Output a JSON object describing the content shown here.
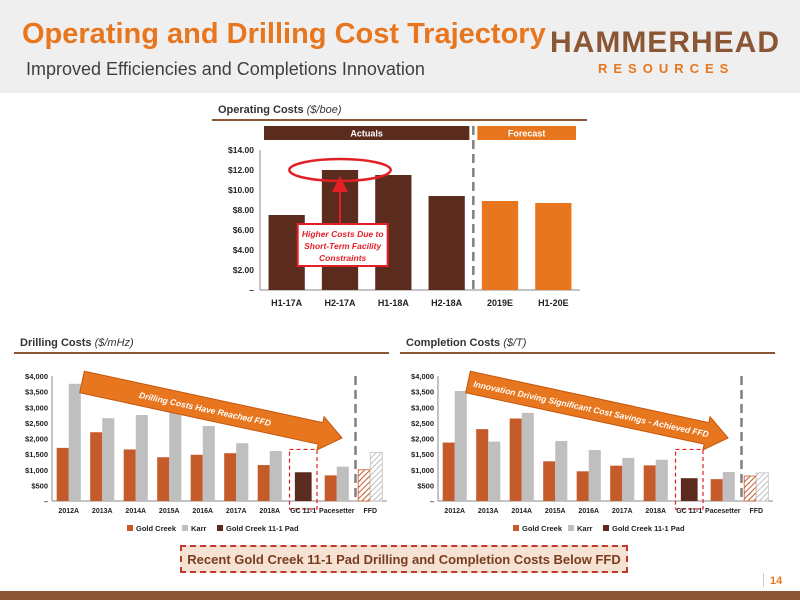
{
  "header": {
    "title": "Operating and Drilling Cost Trajectory",
    "subtitle": "Improved Efficiencies and Completions Innovation",
    "logo_main": "HAMMERHEAD",
    "logo_sub": "RESOURCES"
  },
  "opcost_section": {
    "label": "Operating Costs",
    "unit": "($/boe)"
  },
  "drill_section": {
    "label": "Drilling Costs",
    "unit": "($/mHz)"
  },
  "comp_section": {
    "label": "Completion Costs",
    "unit": "($/T)"
  },
  "callout": "Recent Gold Creek 11-1 Pad Drilling and Completion Costs Below FFD",
  "page_number": "14",
  "colors": {
    "orange": "#e8761e",
    "brown": "#5b2c1e",
    "gold_creek": "#c55a2b",
    "karr": "#bfbfbf",
    "pad": "#5b2c1e",
    "red": "#e31f26"
  },
  "chart_data": [
    {
      "type": "bar",
      "title": "Operating Costs ($/boe)",
      "categories": [
        "H1-17A",
        "H2-17A",
        "H1-18A",
        "H2-18A",
        "2019E",
        "H1-20E"
      ],
      "values": [
        7.5,
        12.0,
        11.5,
        9.4,
        8.9,
        8.7
      ],
      "period": [
        "Actuals",
        "Actuals",
        "Actuals",
        "Actuals",
        "Forecast",
        "Forecast"
      ],
      "period_labels": {
        "actuals": "Actuals",
        "forecast": "Forecast"
      },
      "ylim": [
        0,
        14
      ],
      "yticks": [
        0,
        2,
        4,
        6,
        8,
        10,
        12,
        14
      ],
      "ytick_labels": [
        "–",
        "$2.00",
        "$4.00",
        "$6.00",
        "$8.00",
        "$10.00",
        "$12.00",
        "$14.00"
      ],
      "annotation": [
        "Higher Costs Due to",
        "Short-Term Facility",
        "Constraints"
      ]
    },
    {
      "type": "bar",
      "title": "Drilling Costs ($/mHz)",
      "categories": [
        "2012A",
        "2013A",
        "2014A",
        "2015A",
        "2016A",
        "2017A",
        "2018A",
        "GC 11-1",
        "Pacesetter",
        "FFD"
      ],
      "series": [
        {
          "name": "Gold Creek",
          "values": [
            1700,
            2200,
            1650,
            1400,
            1480,
            1530,
            1150,
            null,
            820,
            1000
          ]
        },
        {
          "name": "Karr",
          "values": [
            3750,
            2650,
            2750,
            2850,
            2400,
            1850,
            1600,
            null,
            1100,
            1550
          ]
        },
        {
          "name": "Gold Creek  11-1 Pad",
          "values": [
            null,
            null,
            null,
            null,
            null,
            null,
            null,
            920,
            null,
            null
          ]
        }
      ],
      "ylim": [
        0,
        4000
      ],
      "yticks": [
        0,
        500,
        1000,
        1500,
        2000,
        2500,
        3000,
        3500,
        4000
      ],
      "ytick_labels": [
        "–",
        "$500",
        "$1,000",
        "$1,500",
        "$2,000",
        "$2,500",
        "$3,000",
        "$3,500",
        "$4,000"
      ],
      "annotation": "Drilling Costs Have Reached FFD"
    },
    {
      "type": "bar",
      "title": "Completion Costs ($/T)",
      "categories": [
        "2012A",
        "2013A",
        "2014A",
        "2015A",
        "2016A",
        "2017A",
        "2018A",
        "GC 11-1",
        "Pacesetter",
        "FFD"
      ],
      "series": [
        {
          "name": "Gold Creek",
          "values": [
            1870,
            2300,
            2640,
            1270,
            950,
            1130,
            1140,
            null,
            700,
            800
          ]
        },
        {
          "name": "Karr",
          "values": [
            3520,
            1900,
            2820,
            1920,
            1630,
            1380,
            1320,
            null,
            930,
            900
          ]
        },
        {
          "name": "Gold Creek  11-1 Pad",
          "values": [
            null,
            null,
            null,
            null,
            null,
            null,
            null,
            730,
            null,
            null
          ]
        }
      ],
      "ylim": [
        0,
        4000
      ],
      "yticks": [
        0,
        500,
        1000,
        1500,
        2000,
        2500,
        3000,
        3500,
        4000
      ],
      "ytick_labels": [
        "–",
        "$500",
        "$1,000",
        "$1,500",
        "$2,000",
        "$2,500",
        "$3,000",
        "$3,500",
        "$4,000"
      ],
      "annotation": "Innovation Driving Significant Cost Savings - Achieved FFD"
    }
  ]
}
